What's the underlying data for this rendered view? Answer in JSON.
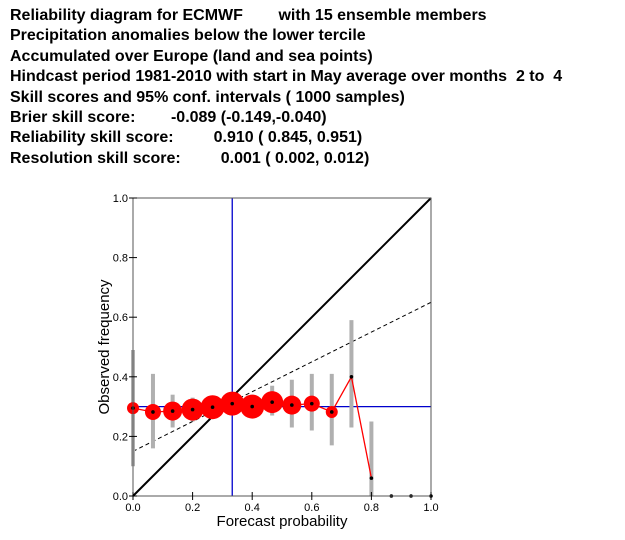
{
  "header": {
    "lines": [
      "Reliability diagram for ECMWF        with 15 ensemble members",
      "Precipitation anomalies below the lower tercile",
      "Accumulated over Europe (land and sea points)",
      "Hindcast period 1981-2010 with start in May average over months  2 to  4",
      "Skill scores and 95% conf. intervals ( 1000 samples)",
      "Brier skill score:        -0.089 (-0.149,-0.040)",
      "Reliability skill score:         0.910 ( 0.845, 0.951)",
      "Resolution skill score:         0.001 ( 0.002, 0.012)"
    ]
  },
  "chart_data": {
    "type": "scatter",
    "title": "",
    "xlabel": "Forecast probability",
    "ylabel": "Observed frequency",
    "xlim": [
      0.0,
      1.0
    ],
    "ylim": [
      0.0,
      1.0
    ],
    "xticks": [
      "0.0",
      "0.2",
      "0.4",
      "0.6",
      "0.8",
      "1.0"
    ],
    "yticks": [
      "0.0",
      "0.2",
      "0.4",
      "0.6",
      "0.8",
      "1.0"
    ],
    "climatology": {
      "x": 0.333,
      "y": 0.3
    },
    "no_skill_line": [
      [
        0.0,
        0.15
      ],
      [
        1.0,
        0.65
      ]
    ],
    "diagonal": [
      [
        0.0,
        0.0
      ],
      [
        1.0,
        1.0
      ]
    ],
    "points": [
      {
        "x": 0.0,
        "y": 0.295,
        "size": 1,
        "ci": [
          0.1,
          0.49
        ]
      },
      {
        "x": 0.067,
        "y": 0.282,
        "size": 2,
        "ci": [
          0.16,
          0.41
        ]
      },
      {
        "x": 0.133,
        "y": 0.285,
        "size": 3,
        "ci": [
          0.23,
          0.34
        ]
      },
      {
        "x": 0.2,
        "y": 0.29,
        "size": 4,
        "ci": [
          0.25,
          0.33
        ]
      },
      {
        "x": 0.267,
        "y": 0.298,
        "size": 5,
        "ci": [
          0.27,
          0.32
        ]
      },
      {
        "x": 0.333,
        "y": 0.31,
        "size": 5,
        "ci": [
          0.29,
          0.33
        ]
      },
      {
        "x": 0.4,
        "y": 0.3,
        "size": 5,
        "ci": [
          0.27,
          0.34
        ]
      },
      {
        "x": 0.467,
        "y": 0.315,
        "size": 4,
        "ci": [
          0.27,
          0.37
        ]
      },
      {
        "x": 0.533,
        "y": 0.305,
        "size": 3,
        "ci": [
          0.23,
          0.39
        ]
      },
      {
        "x": 0.6,
        "y": 0.31,
        "size": 2,
        "ci": [
          0.22,
          0.41
        ]
      },
      {
        "x": 0.667,
        "y": 0.282,
        "size": 1,
        "ci": [
          0.17,
          0.41
        ]
      },
      {
        "x": 0.733,
        "y": 0.4,
        "size": 0,
        "ci": [
          0.23,
          0.59
        ]
      },
      {
        "x": 0.8,
        "y": 0.06,
        "size": 0,
        "ci": [
          0.0,
          0.25
        ]
      },
      {
        "x": 0.867,
        "y": 0.0,
        "size": 0,
        "ci": null
      },
      {
        "x": 0.933,
        "y": 0.0,
        "size": 0,
        "ci": null
      },
      {
        "x": 1.0,
        "y": 0.0,
        "size": 0,
        "ci": null
      }
    ],
    "colors": {
      "markers": "#ff0000",
      "center_dot": "#000000",
      "ci_bars": "#b0b0b0",
      "climatology_lines": "#0000cc",
      "diagonal": "#000000",
      "no_skill": "#000000"
    },
    "grid": false,
    "legend": "none"
  }
}
